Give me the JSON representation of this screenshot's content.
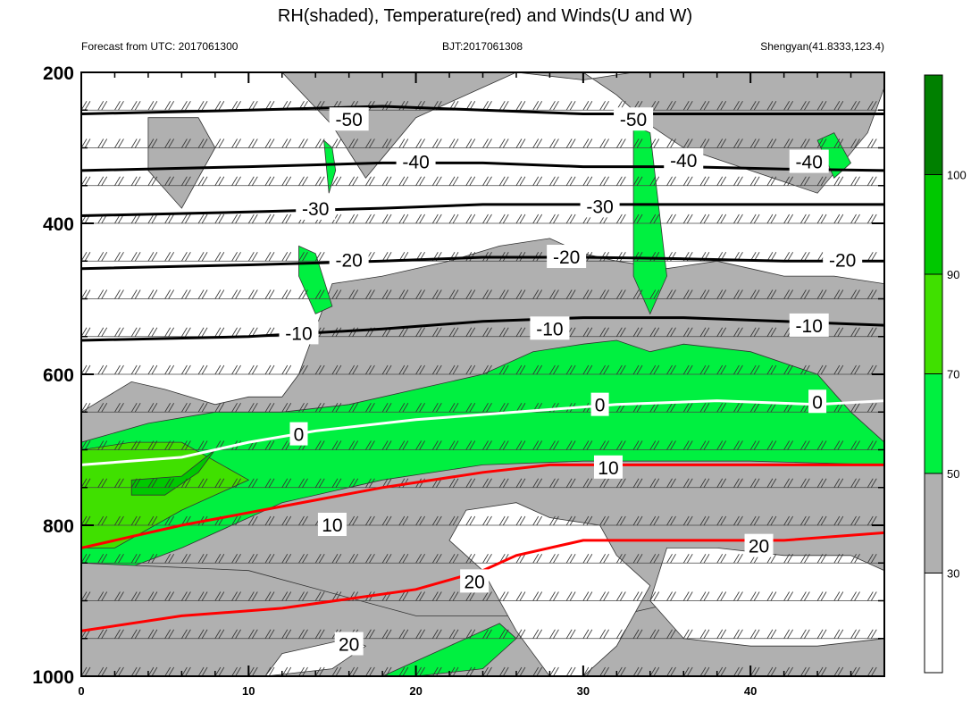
{
  "chart_data": {
    "type": "heatmap",
    "title": "RH(shaded), Temperature(red) and Winds(U and W)",
    "subtitle_left": "Forecast from UTC: 2017061300",
    "subtitle_center": "BJT:2017061308",
    "subtitle_right": "Shengyan(41.8333,123.4)",
    "xlim": [
      0,
      48
    ],
    "ylim": [
      1000,
      200
    ],
    "x_ticks": [
      "0",
      "10",
      "20",
      "30",
      "40"
    ],
    "x_tick_values": [
      0,
      10,
      20,
      30,
      40
    ],
    "y_ticks": [
      "200",
      "400",
      "600",
      "800",
      "1000"
    ],
    "y_tick_values": [
      200,
      400,
      600,
      800,
      1000
    ],
    "colorbar": {
      "levels": [
        "30",
        "50",
        "70",
        "90",
        "100"
      ],
      "level_values": [
        30,
        50,
        70,
        90,
        100
      ],
      "colors": [
        "#ffffff",
        "#b0b0b0",
        "#00f040",
        "#40e000",
        "#00c800",
        "#008000"
      ]
    },
    "shading": [
      {
        "x": [
          0,
          0,
          3,
          5,
          8,
          10,
          12,
          13,
          15,
          18,
          22,
          25,
          28,
          30,
          32,
          35,
          38,
          40,
          42,
          45,
          48,
          48
        ],
        "y": [
          1000,
          650,
          610,
          620,
          640,
          630,
          630,
          600,
          480,
          470,
          450,
          430,
          420,
          440,
          450,
          460,
          450,
          460,
          470,
          470,
          480,
          1000
        ],
        "rh_class": "gray"
      },
      {
        "x": [
          10,
          12,
          15,
          17,
          20,
          24,
          26,
          30,
          32,
          34,
          36,
          40,
          44,
          47,
          48,
          48,
          44,
          40,
          38,
          36,
          34,
          33,
          30,
          26,
          24,
          20,
          17,
          15,
          13
        ],
        "y": [
          200,
          200,
          270,
          340,
          260,
          220,
          200,
          200,
          230,
          270,
          300,
          330,
          360,
          280,
          220,
          200,
          200,
          200,
          200,
          200,
          200,
          200,
          210,
          200,
          200,
          200,
          200,
          200,
          200
        ],
        "rh_class": "gray"
      },
      {
        "x": [
          4,
          7,
          8,
          6,
          4
        ],
        "y": [
          260,
          260,
          300,
          380,
          330
        ],
        "rh_class": "gray"
      },
      {
        "x": [
          0,
          4,
          8,
          12,
          16,
          20,
          24,
          27,
          30,
          32,
          34,
          36,
          40,
          44,
          46,
          48,
          48,
          40,
          35,
          30,
          24,
          18,
          12,
          6,
          0
        ],
        "y": [
          690,
          665,
          650,
          650,
          640,
          620,
          600,
          570,
          560,
          555,
          570,
          560,
          570,
          600,
          650,
          690,
          720,
          715,
          715,
          715,
          720,
          740,
          770,
          830,
          880
        ],
        "rh_class": "green"
      },
      {
        "x": [
          33,
          34,
          35,
          34,
          33
        ],
        "y": [
          270,
          280,
          470,
          520,
          470
        ],
        "rh_class": "green"
      },
      {
        "x": [
          13,
          14,
          15,
          14,
          13
        ],
        "y": [
          430,
          440,
          510,
          520,
          470
        ],
        "rh_class": "green"
      },
      {
        "x": [
          14.5,
          15,
          15.2,
          14.8
        ],
        "y": [
          290,
          300,
          330,
          360
        ],
        "rh_class": "green"
      },
      {
        "x": [
          44,
          45,
          46,
          45
        ],
        "y": [
          290,
          280,
          320,
          340
        ],
        "rh_class": "green"
      },
      {
        "x": [
          0,
          3,
          6,
          10,
          6,
          2,
          0
        ],
        "y": [
          700,
          690,
          690,
          740,
          780,
          830,
          830
        ],
        "rh_class": "lightgreen"
      },
      {
        "x": [
          3,
          6,
          8,
          7,
          5,
          3
        ],
        "y": [
          740,
          735,
          700,
          730,
          760,
          760
        ],
        "rh_class": "darkgreen"
      },
      {
        "x": [
          0,
          10,
          20,
          32,
          40,
          48,
          48,
          40,
          32,
          20,
          10,
          0
        ],
        "y": [
          850,
          860,
          920,
          920,
          880,
          860,
          1000,
          1000,
          1000,
          1000,
          1000,
          1000
        ],
        "rh_class": "gray"
      },
      {
        "x": [
          23,
          26,
          28,
          31,
          32,
          34,
          32,
          30,
          28,
          26,
          24,
          22
        ],
        "y": [
          780,
          770,
          790,
          800,
          840,
          880,
          960,
          1000,
          1000,
          940,
          860,
          820
        ],
        "rh_class": "white"
      },
      {
        "x": [
          35,
          38,
          42,
          46,
          48,
          48,
          44,
          40,
          36,
          34
        ],
        "y": [
          830,
          830,
          840,
          840,
          860,
          950,
          960,
          960,
          950,
          900
        ],
        "rh_class": "white"
      },
      {
        "x": [
          11,
          15,
          17,
          16,
          12
        ],
        "y": [
          1000,
          990,
          960,
          950,
          970
        ],
        "rh_class": "white"
      },
      {
        "x": [
          18,
          22,
          25,
          26,
          24,
          20,
          18
        ],
        "y": [
          1000,
          960,
          930,
          950,
          990,
          1000,
          1000
        ],
        "rh_class": "green"
      }
    ],
    "temperature_contours": [
      {
        "level": "-50",
        "x": [
          0,
          10,
          18,
          24,
          30,
          36,
          42,
          48
        ],
        "y": [
          255,
          250,
          245,
          250,
          255,
          255,
          255,
          255
        ],
        "color": "#000000"
      },
      {
        "level": "-40",
        "x": [
          0,
          10,
          18,
          24,
          30,
          36,
          42,
          48
        ],
        "y": [
          330,
          325,
          320,
          320,
          325,
          325,
          328,
          330
        ],
        "color": "#000000"
      },
      {
        "level": "-30",
        "x": [
          0,
          10,
          18,
          24,
          30,
          36,
          42,
          48
        ],
        "y": [
          390,
          385,
          380,
          375,
          375,
          375,
          375,
          375
        ],
        "color": "#000000"
      },
      {
        "level": "-20",
        "x": [
          0,
          10,
          18,
          24,
          30,
          36,
          42,
          48
        ],
        "y": [
          460,
          455,
          450,
          445,
          445,
          447,
          450,
          450
        ],
        "color": "#000000"
      },
      {
        "level": "-10",
        "x": [
          0,
          10,
          18,
          24,
          30,
          36,
          42,
          48
        ],
        "y": [
          555,
          550,
          540,
          530,
          525,
          525,
          530,
          535
        ],
        "color": "#000000"
      },
      {
        "level": "0",
        "x": [
          0,
          6,
          10,
          14,
          20,
          26,
          32,
          38,
          44,
          48
        ],
        "y": [
          720,
          710,
          690,
          675,
          660,
          650,
          640,
          635,
          640,
          635
        ],
        "color": "#ffffff"
      },
      {
        "level": "10",
        "x": [
          0,
          6,
          12,
          18,
          24,
          28,
          32,
          38,
          44,
          48
        ],
        "y": [
          830,
          800,
          775,
          750,
          730,
          720,
          720,
          720,
          720,
          720
        ],
        "color": "#ff0000"
      },
      {
        "level": "20",
        "x": [
          0,
          6,
          12,
          20,
          24,
          26,
          30,
          36,
          42,
          48
        ],
        "y": [
          940,
          920,
          910,
          885,
          860,
          840,
          820,
          820,
          820,
          810
        ],
        "color": "#ff0000"
      }
    ],
    "contour_label_positions": [
      {
        "text": "-50",
        "x": 16,
        "y": 263
      },
      {
        "text": "-50",
        "x": 33,
        "y": 263
      },
      {
        "text": "-40",
        "x": 20,
        "y": 319
      },
      {
        "text": "-40",
        "x": 36,
        "y": 317
      },
      {
        "text": "-40",
        "x": 43.5,
        "y": 319
      },
      {
        "text": "-30",
        "x": 14,
        "y": 381
      },
      {
        "text": "-30",
        "x": 31,
        "y": 378
      },
      {
        "text": "-20",
        "x": 16,
        "y": 449
      },
      {
        "text": "-20",
        "x": 29,
        "y": 445
      },
      {
        "text": "-20",
        "x": 45.5,
        "y": 449
      },
      {
        "text": "-10",
        "x": 13,
        "y": 546
      },
      {
        "text": "-10",
        "x": 28,
        "y": 540
      },
      {
        "text": "-10",
        "x": 43.5,
        "y": 536
      },
      {
        "text": "0",
        "x": 13,
        "y": 680
      },
      {
        "text": "0",
        "x": 31,
        "y": 641
      },
      {
        "text": "0",
        "x": 44,
        "y": 637
      },
      {
        "text": "10",
        "x": 31.5,
        "y": 724
      },
      {
        "text": "10",
        "x": 15,
        "y": 800
      },
      {
        "text": "20",
        "x": 23.5,
        "y": 875
      },
      {
        "text": "20",
        "x": 40.5,
        "y": 828
      },
      {
        "text": "20",
        "x": 16,
        "y": 958
      }
    ]
  }
}
